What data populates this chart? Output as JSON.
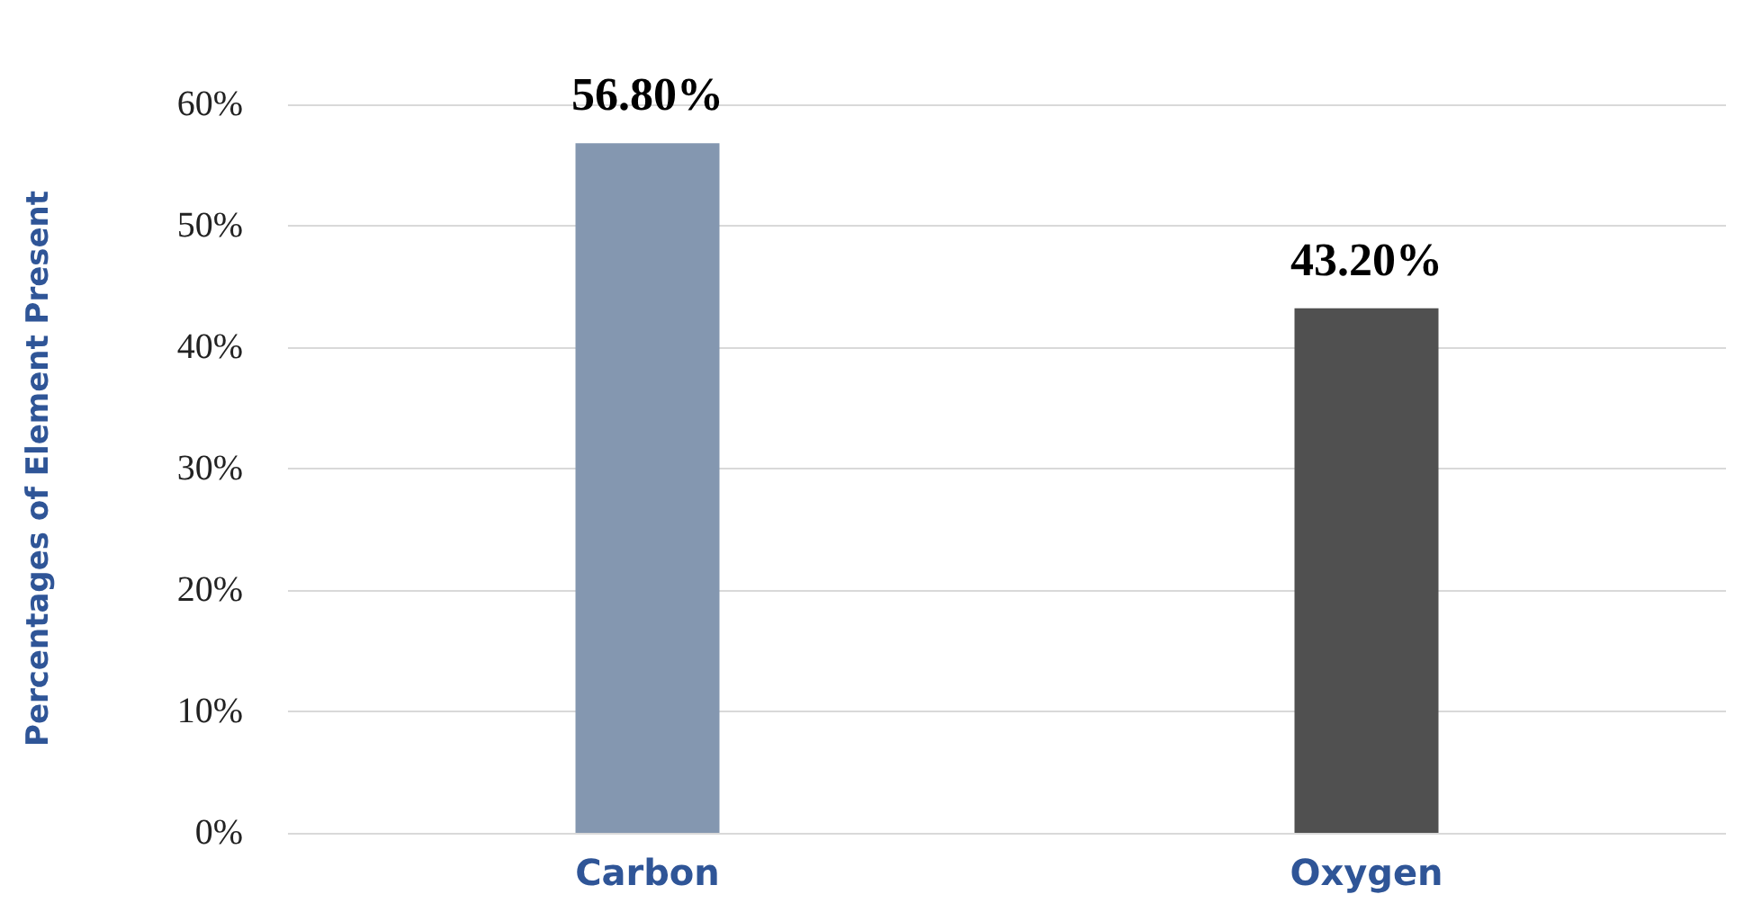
{
  "chart_data": {
    "type": "bar",
    "ylabel": "Percentages of Element Present",
    "categories": [
      "Carbon",
      "Oxygen"
    ],
    "values": [
      56.8,
      43.2
    ],
    "colors": [
      "#8497b0",
      "#505050"
    ],
    "value_labels": [
      "56.80%",
      "43.20%"
    ],
    "ylim": [
      0,
      60
    ],
    "yticks": [
      {
        "value": 0,
        "label": "0%"
      },
      {
        "value": 10,
        "label": "10%"
      },
      {
        "value": 20,
        "label": "20%"
      },
      {
        "value": 30,
        "label": "30%"
      },
      {
        "value": 40,
        "label": "40%"
      },
      {
        "value": 50,
        "label": "50%"
      },
      {
        "value": 60,
        "label": "60%"
      }
    ],
    "grid": true
  }
}
